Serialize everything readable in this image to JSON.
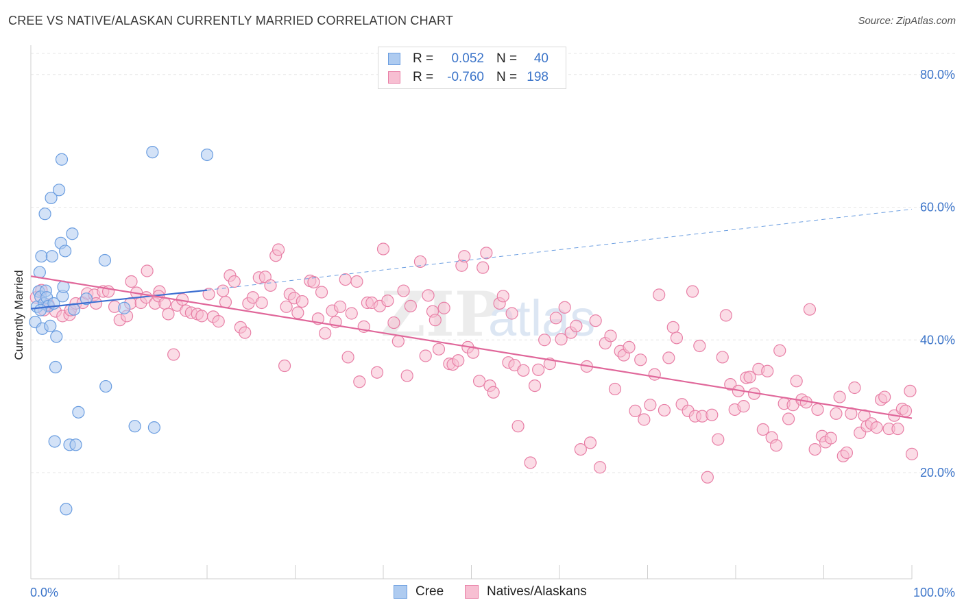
{
  "title": "CREE VS NATIVE/ALASKAN CURRENTLY MARRIED CORRELATION CHART",
  "source": "Source: ZipAtlas.com",
  "watermark": "ZIPatlas",
  "legend": {
    "rows": [
      {
        "r_label": "R =",
        "r_value": "0.052",
        "n_label": "N =",
        "n_value": "40",
        "color": "#aecbf0",
        "border": "#6a9de0"
      },
      {
        "r_label": "R =",
        "r_value": "-0.760",
        "n_label": "N =",
        "n_value": "198",
        "color": "#f7bfd2",
        "border": "#e87fa6"
      }
    ]
  },
  "bottom_legend": [
    {
      "label": "Cree",
      "color": "#aecbf0",
      "border": "#6a9de0"
    },
    {
      "label": "Natives/Alaskans",
      "color": "#f7bfd2",
      "border": "#e87fa6"
    }
  ],
  "chart_data": {
    "type": "scatter",
    "ylabel": "Currently Married",
    "xlabel": "",
    "xlim": [
      0,
      100
    ],
    "ylim": [
      4,
      84
    ],
    "x_tick_labels": {
      "left": "0.0%",
      "right": "100.0%"
    },
    "y_ticks": [
      {
        "value": 80,
        "label": "80.0%"
      },
      {
        "value": 60,
        "label": "60.0%"
      },
      {
        "value": 40,
        "label": "40.0%"
      },
      {
        "value": 20,
        "label": "20.0%"
      }
    ],
    "grid": true,
    "series": [
      {
        "name": "Cree",
        "color": "#aecbf0",
        "stroke": "#6a9de0",
        "trend": {
          "x0": 0,
          "y0": 44.7,
          "x1": 20,
          "y1": 47.5,
          "dashed_to_x": 100,
          "dashed_to_y": 59.7,
          "color": "#3d6fd1"
        },
        "points": [
          [
            0.5,
            42.7
          ],
          [
            0.7,
            45
          ],
          [
            0.9,
            47.3
          ],
          [
            1.0,
            50.2
          ],
          [
            1.1,
            46.5
          ],
          [
            1.2,
            52.6
          ],
          [
            1.3,
            41.7
          ],
          [
            1.5,
            45.5
          ],
          [
            1.7,
            47.4
          ],
          [
            1.8,
            46.4
          ],
          [
            1.6,
            59
          ],
          [
            2.0,
            45.1
          ],
          [
            2.2,
            42.1
          ],
          [
            2.3,
            61.4
          ],
          [
            2.4,
            52.6
          ],
          [
            2.6,
            45.5
          ],
          [
            2.7,
            24.7
          ],
          [
            2.8,
            35.9
          ],
          [
            2.9,
            40.5
          ],
          [
            3.2,
            62.6
          ],
          [
            3.4,
            54.6
          ],
          [
            3.5,
            67.2
          ],
          [
            3.6,
            46.6
          ],
          [
            3.7,
            48
          ],
          [
            3.9,
            53.4
          ],
          [
            4.0,
            14.5
          ],
          [
            4.4,
            24.2
          ],
          [
            4.7,
            56
          ],
          [
            5.1,
            24.2
          ],
          [
            5.4,
            29.1
          ],
          [
            6.3,
            46.2
          ],
          [
            8.4,
            52
          ],
          [
            8.5,
            33
          ],
          [
            10.6,
            44.8
          ],
          [
            11.8,
            27
          ],
          [
            13.8,
            68.3
          ],
          [
            14.0,
            26.8
          ],
          [
            20.0,
            67.9
          ],
          [
            1.1,
            44.5
          ],
          [
            4.9,
            44.6
          ]
        ]
      },
      {
        "name": "Natives/Alaskans",
        "color": "#f7bfd2",
        "stroke": "#e87fa6",
        "trend": {
          "x0": 0,
          "y0": 49.6,
          "x1": 100,
          "y1": 28.2,
          "color": "#e0679a"
        },
        "points": [
          [
            0.6,
            46.4
          ],
          [
            1.2,
            47.5
          ],
          [
            1.5,
            44.5
          ],
          [
            2.0,
            45.3
          ],
          [
            2.8,
            44.3
          ],
          [
            3.6,
            43.6
          ],
          [
            4.4,
            43.8
          ],
          [
            4.5,
            44.5
          ],
          [
            5.1,
            45.5
          ],
          [
            5.9,
            45.6
          ],
          [
            6.4,
            47
          ],
          [
            7.2,
            46.8
          ],
          [
            7.4,
            45.5
          ],
          [
            8.2,
            47.3
          ],
          [
            8.8,
            47.3
          ],
          [
            9.5,
            45
          ],
          [
            10.1,
            43
          ],
          [
            10.9,
            43.6
          ],
          [
            11.3,
            45.5
          ],
          [
            11.4,
            48.8
          ],
          [
            12.0,
            47.1
          ],
          [
            12.5,
            45.6
          ],
          [
            13.1,
            46.4
          ],
          [
            13.2,
            50.4
          ],
          [
            14.1,
            45.5
          ],
          [
            14.6,
            47.3
          ],
          [
            14.5,
            46.6
          ],
          [
            15.2,
            45.5
          ],
          [
            15.6,
            43.9
          ],
          [
            16.2,
            37.8
          ],
          [
            16.6,
            45.2
          ],
          [
            17.2,
            46.1
          ],
          [
            17.6,
            44.4
          ],
          [
            18.2,
            44.1
          ],
          [
            18.9,
            43.9
          ],
          [
            19.4,
            43.6
          ],
          [
            20.2,
            46.9
          ],
          [
            20.7,
            43.5
          ],
          [
            21.3,
            42.8
          ],
          [
            21.8,
            47.4
          ],
          [
            22.1,
            45.7
          ],
          [
            22.6,
            49.7
          ],
          [
            23.1,
            48.8
          ],
          [
            23.8,
            41.9
          ],
          [
            24.3,
            41.1
          ],
          [
            24.7,
            45.5
          ],
          [
            25.2,
            46.4
          ],
          [
            25.9,
            49.4
          ],
          [
            26.2,
            45.6
          ],
          [
            26.6,
            49.5
          ],
          [
            27.2,
            48.2
          ],
          [
            27.8,
            52.7
          ],
          [
            28.1,
            53.6
          ],
          [
            28.8,
            36.1
          ],
          [
            29.0,
            45
          ],
          [
            29.4,
            46.9
          ],
          [
            29.9,
            46.3
          ],
          [
            30.3,
            44.1
          ],
          [
            30.8,
            45.8
          ],
          [
            31.7,
            48.9
          ],
          [
            32.1,
            48.7
          ],
          [
            32.6,
            43.2
          ],
          [
            33.0,
            47.2
          ],
          [
            33.4,
            41
          ],
          [
            34.2,
            44.4
          ],
          [
            34.6,
            42.7
          ],
          [
            35.1,
            45
          ],
          [
            35.7,
            49.1
          ],
          [
            36.0,
            37.4
          ],
          [
            36.4,
            44
          ],
          [
            37.0,
            48.8
          ],
          [
            37.3,
            33.7
          ],
          [
            37.8,
            42
          ],
          [
            38.2,
            45.6
          ],
          [
            38.7,
            45.6
          ],
          [
            39.3,
            35.1
          ],
          [
            39.6,
            45.1
          ],
          [
            40.0,
            53.7
          ],
          [
            40.5,
            45.9
          ],
          [
            41.2,
            42.6
          ],
          [
            41.7,
            39.8
          ],
          [
            42.3,
            47.4
          ],
          [
            42.7,
            34.6
          ],
          [
            43.1,
            45.1
          ],
          [
            44.2,
            51.8
          ],
          [
            44.8,
            37.6
          ],
          [
            45.1,
            46.7
          ],
          [
            45.6,
            44.3
          ],
          [
            45.9,
            43
          ],
          [
            46.3,
            38.6
          ],
          [
            46.9,
            44.8
          ],
          [
            47.5,
            36.4
          ],
          [
            47.9,
            36.3
          ],
          [
            48.5,
            36.9
          ],
          [
            48.9,
            51.2
          ],
          [
            49.2,
            52.6
          ],
          [
            49.6,
            38.9
          ],
          [
            50.2,
            38.1
          ],
          [
            50.9,
            33.8
          ],
          [
            51.3,
            50.9
          ],
          [
            51.7,
            53.1
          ],
          [
            52.1,
            33.1
          ],
          [
            52.5,
            32.1
          ],
          [
            53.2,
            45.5
          ],
          [
            53.6,
            46.6
          ],
          [
            54.2,
            36.6
          ],
          [
            54.6,
            44
          ],
          [
            54.9,
            36.2
          ],
          [
            55.3,
            27
          ],
          [
            55.9,
            35.4
          ],
          [
            56.7,
            21.5
          ],
          [
            57.2,
            33.1
          ],
          [
            57.6,
            35.5
          ],
          [
            58.3,
            40
          ],
          [
            58.9,
            36.4
          ],
          [
            59.6,
            43.3
          ],
          [
            60.2,
            40.1
          ],
          [
            60.6,
            44.9
          ],
          [
            61.3,
            41.1
          ],
          [
            61.9,
            42.1
          ],
          [
            62.4,
            23.5
          ],
          [
            63.1,
            36
          ],
          [
            63.5,
            24.5
          ],
          [
            64.1,
            42.9
          ],
          [
            64.6,
            20.8
          ],
          [
            65.2,
            39.5
          ],
          [
            65.8,
            40.6
          ],
          [
            66.3,
            32.6
          ],
          [
            66.9,
            38.3
          ],
          [
            67.3,
            37.7
          ],
          [
            67.9,
            38.9
          ],
          [
            68.6,
            29.3
          ],
          [
            69.2,
            37
          ],
          [
            69.6,
            28
          ],
          [
            70.3,
            30.2
          ],
          [
            70.8,
            34.8
          ],
          [
            71.3,
            46.8
          ],
          [
            71.9,
            29.4
          ],
          [
            72.4,
            37.3
          ],
          [
            72.9,
            41.9
          ],
          [
            73.3,
            40.3
          ],
          [
            73.9,
            30.3
          ],
          [
            74.6,
            29.3
          ],
          [
            75.1,
            47.3
          ],
          [
            75.4,
            28.5
          ],
          [
            75.9,
            39.1
          ],
          [
            76.2,
            28.5
          ],
          [
            76.8,
            19.3
          ],
          [
            77.3,
            28.7
          ],
          [
            78.0,
            25
          ],
          [
            78.5,
            37.4
          ],
          [
            78.9,
            43.7
          ],
          [
            79.4,
            33.3
          ],
          [
            79.9,
            29.5
          ],
          [
            80.3,
            32.3
          ],
          [
            80.9,
            30
          ],
          [
            81.2,
            34.3
          ],
          [
            81.6,
            34.4
          ],
          [
            82.1,
            31.9
          ],
          [
            82.6,
            35.6
          ],
          [
            83.1,
            26.5
          ],
          [
            83.6,
            35.3
          ],
          [
            84.1,
            25.3
          ],
          [
            84.6,
            24.1
          ],
          [
            85.0,
            38.4
          ],
          [
            85.5,
            30.4
          ],
          [
            86.0,
            28.1
          ],
          [
            86.5,
            30.2
          ],
          [
            86.9,
            33.8
          ],
          [
            87.5,
            31
          ],
          [
            88.0,
            30.6
          ],
          [
            88.4,
            44.6
          ],
          [
            89.0,
            23.5
          ],
          [
            89.3,
            29.5
          ],
          [
            89.8,
            25.5
          ],
          [
            90.2,
            24.6
          ],
          [
            90.8,
            25.2
          ],
          [
            91.4,
            28.9
          ],
          [
            91.8,
            31.4
          ],
          [
            92.2,
            22.5
          ],
          [
            92.6,
            23
          ],
          [
            93.1,
            28.9
          ],
          [
            93.5,
            32.8
          ],
          [
            94.1,
            26
          ],
          [
            94.6,
            28.6
          ],
          [
            94.9,
            27
          ],
          [
            95.4,
            27.4
          ],
          [
            96.0,
            26.8
          ],
          [
            96.5,
            31
          ],
          [
            96.9,
            31.4
          ],
          [
            97.4,
            26.6
          ],
          [
            98.0,
            28.6
          ],
          [
            98.4,
            26.6
          ],
          [
            98.9,
            29.6
          ],
          [
            99.3,
            29.3
          ],
          [
            99.8,
            32.3
          ],
          [
            100.0,
            22.8
          ]
        ]
      }
    ]
  }
}
